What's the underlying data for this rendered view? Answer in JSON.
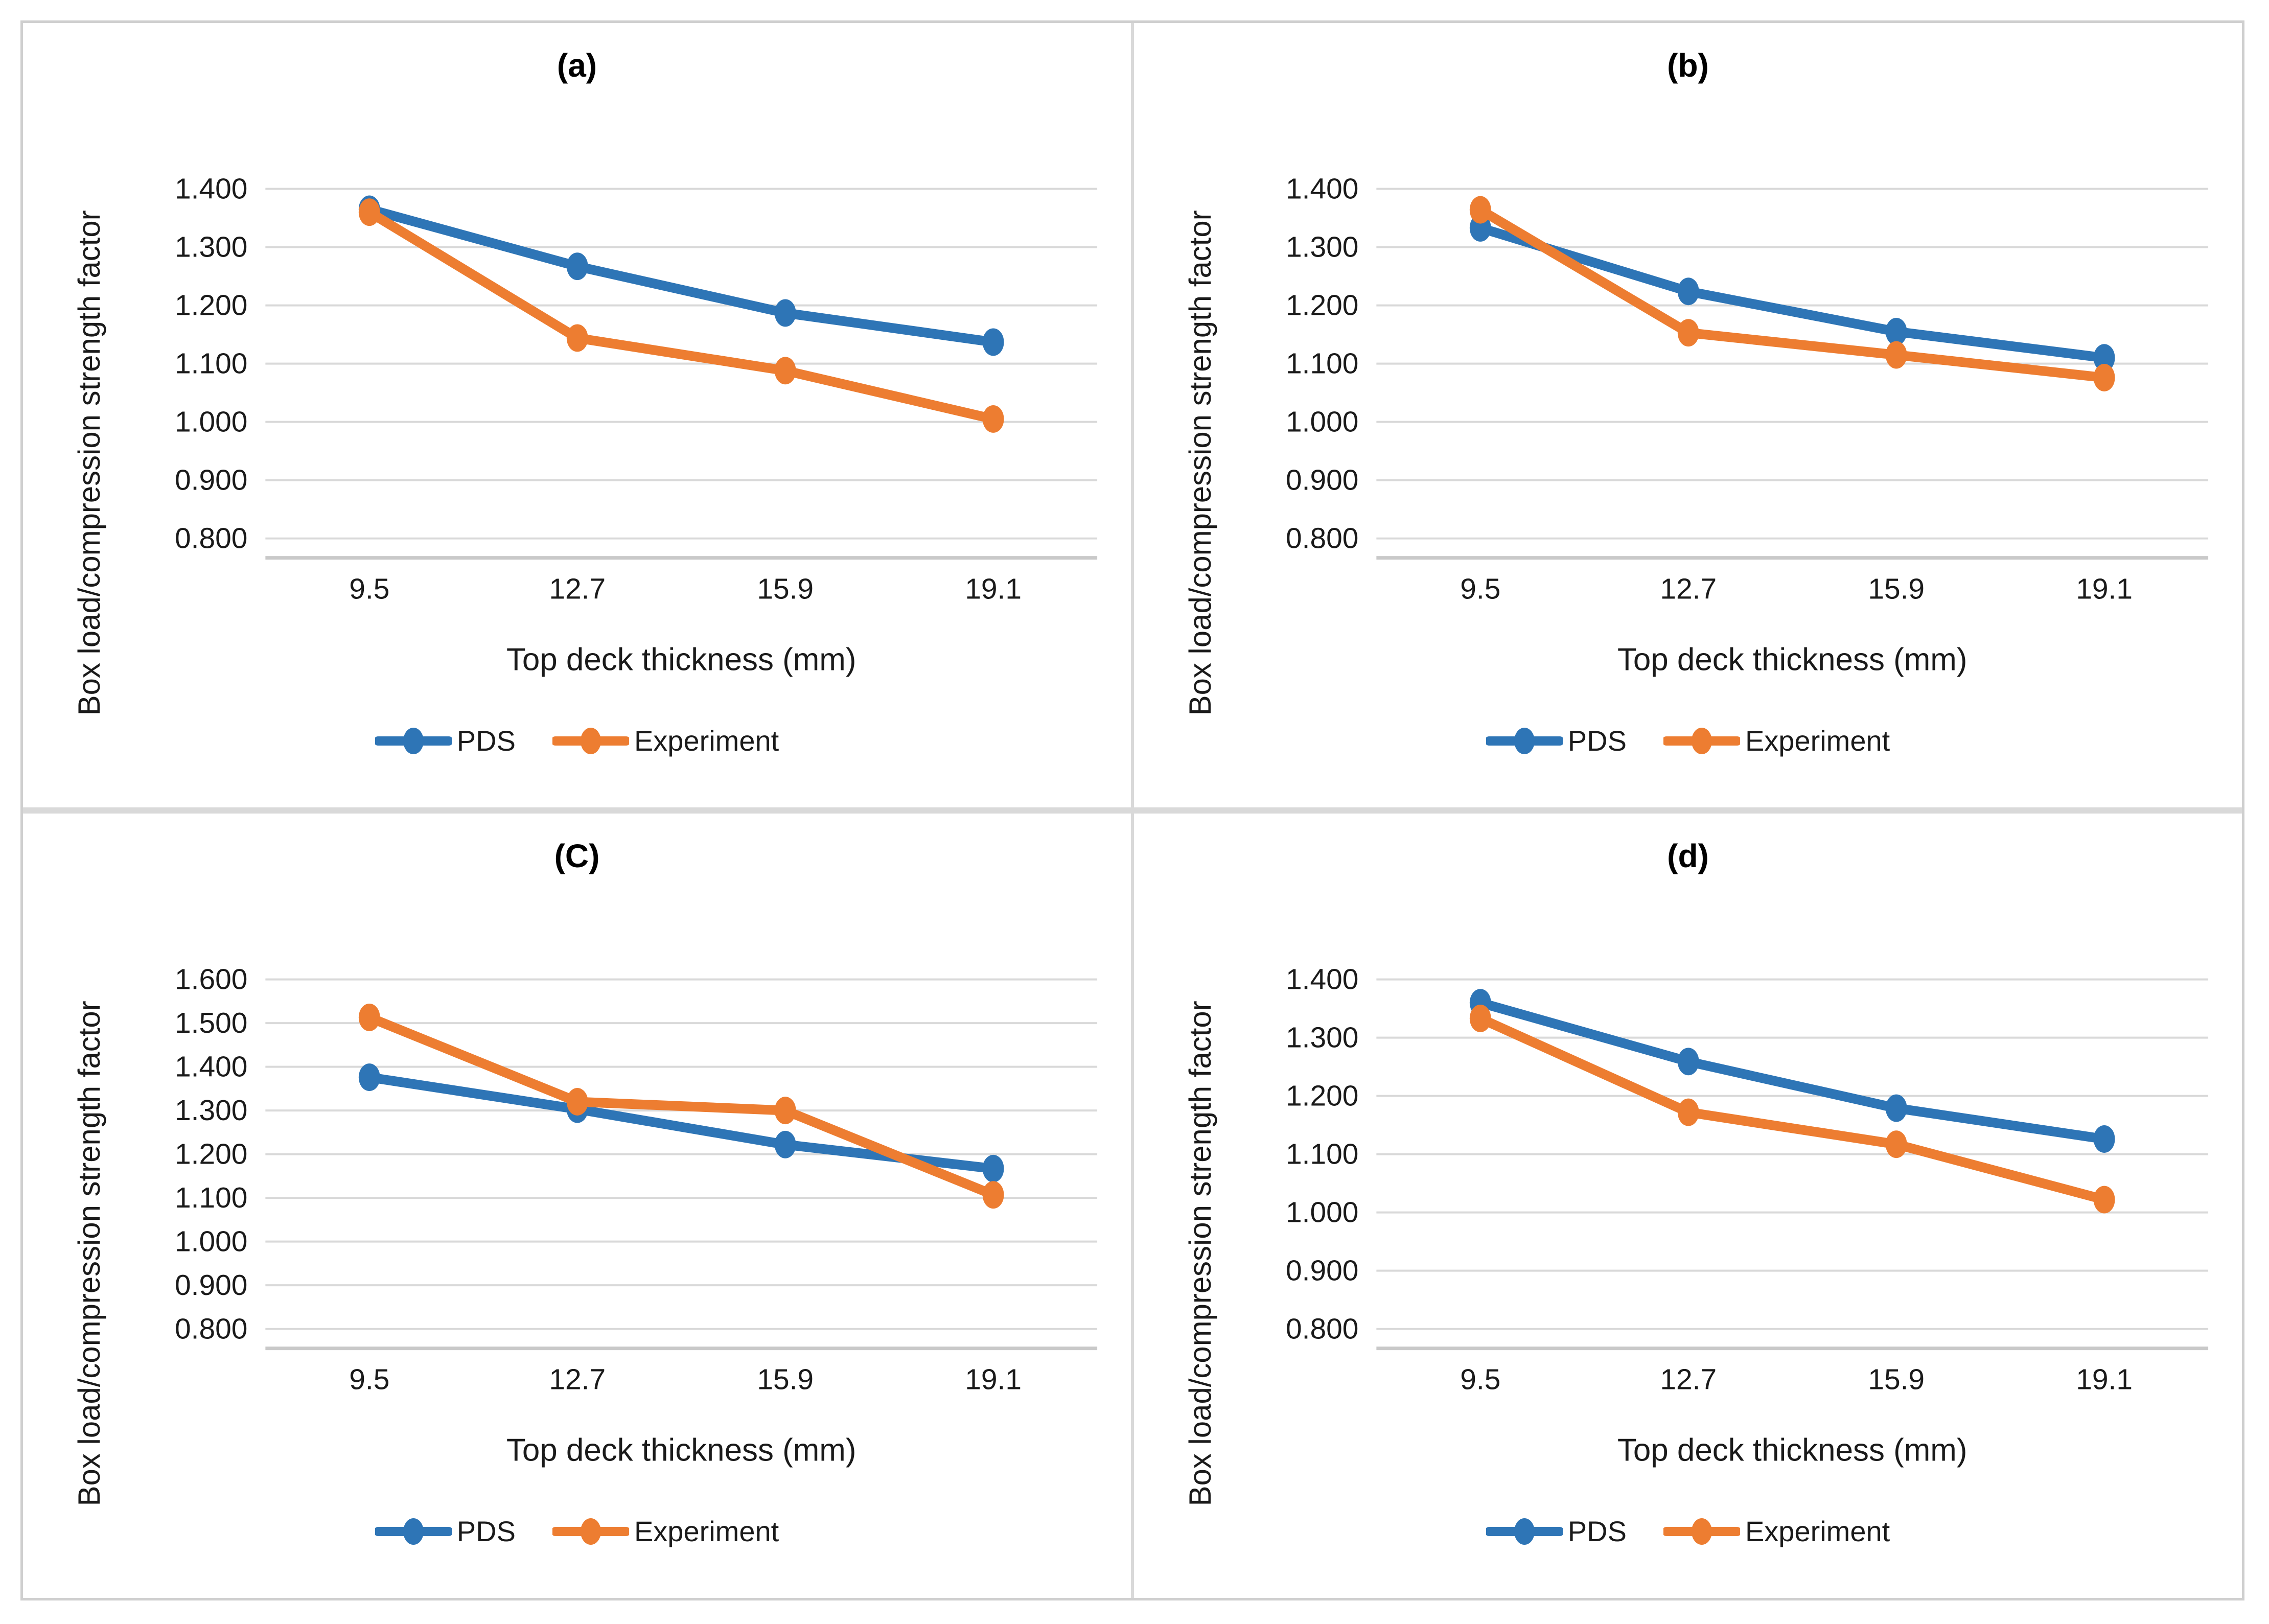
{
  "style": {
    "pds_color": "#2E75B6",
    "experiment_color": "#ED7D31",
    "gridline_color": "#D9D9D9",
    "axis_line_color": "#C9C9C9",
    "text_color": "#1a1a1a",
    "panel_border_color": "#cfcfcf"
  },
  "shared": {
    "x_axis_title": "Top deck thickness (mm)",
    "y_axis_title": "Box load/compression strength factor",
    "legend_labels": [
      "PDS",
      "Experiment"
    ]
  },
  "chart_data": [
    {
      "type": "line",
      "title": "(a)",
      "categories": [
        9.5,
        12.7,
        15.9,
        19.1
      ],
      "xlabel": "Top deck thickness (mm)",
      "ylabel": "Box load/compression strength factor",
      "ylim": [
        0.8,
        1.4
      ],
      "ytick_step": 0.1,
      "grid": true,
      "legend_position": "bottom",
      "series": [
        {
          "name": "PDS",
          "color": "#2E75B6",
          "values": [
            1.365,
            1.267,
            1.187,
            1.137
          ]
        },
        {
          "name": "Experiment",
          "color": "#ED7D31",
          "values": [
            1.36,
            1.144,
            1.088,
            1.005
          ]
        }
      ]
    },
    {
      "type": "line",
      "title": "(b)",
      "categories": [
        9.5,
        12.7,
        15.9,
        19.1
      ],
      "xlabel": "Top deck thickness (mm)",
      "ylabel": "Box load/compression strength factor",
      "ylim": [
        0.8,
        1.4
      ],
      "ytick_step": 0.1,
      "grid": true,
      "legend_position": "bottom",
      "series": [
        {
          "name": "PDS",
          "color": "#2E75B6",
          "values": [
            1.333,
            1.224,
            1.155,
            1.11
          ]
        },
        {
          "name": "Experiment",
          "color": "#ED7D31",
          "values": [
            1.364,
            1.153,
            1.115,
            1.076
          ]
        }
      ]
    },
    {
      "type": "line",
      "title": "(C)",
      "categories": [
        9.5,
        12.7,
        15.9,
        19.1
      ],
      "xlabel": "Top deck thickness (mm)",
      "ylabel": "Box load/compression strength factor",
      "ylim": [
        0.8,
        1.6
      ],
      "ytick_step": 0.1,
      "grid": true,
      "legend_position": "bottom",
      "series": [
        {
          "name": "PDS",
          "color": "#2E75B6",
          "values": [
            1.376,
            1.303,
            1.222,
            1.167
          ]
        },
        {
          "name": "Experiment",
          "color": "#ED7D31",
          "values": [
            1.513,
            1.32,
            1.3,
            1.107
          ]
        }
      ]
    },
    {
      "type": "line",
      "title": "(d)",
      "categories": [
        9.5,
        12.7,
        15.9,
        19.1
      ],
      "xlabel": "Top deck thickness (mm)",
      "ylabel": "Box load/compression strength factor",
      "ylim": [
        0.8,
        1.4
      ],
      "ytick_step": 0.1,
      "grid": true,
      "legend_position": "bottom",
      "series": [
        {
          "name": "PDS",
          "color": "#2E75B6",
          "values": [
            1.36,
            1.259,
            1.179,
            1.126
          ]
        },
        {
          "name": "Experiment",
          "color": "#ED7D31",
          "values": [
            1.333,
            1.172,
            1.117,
            1.022
          ]
        }
      ]
    }
  ]
}
